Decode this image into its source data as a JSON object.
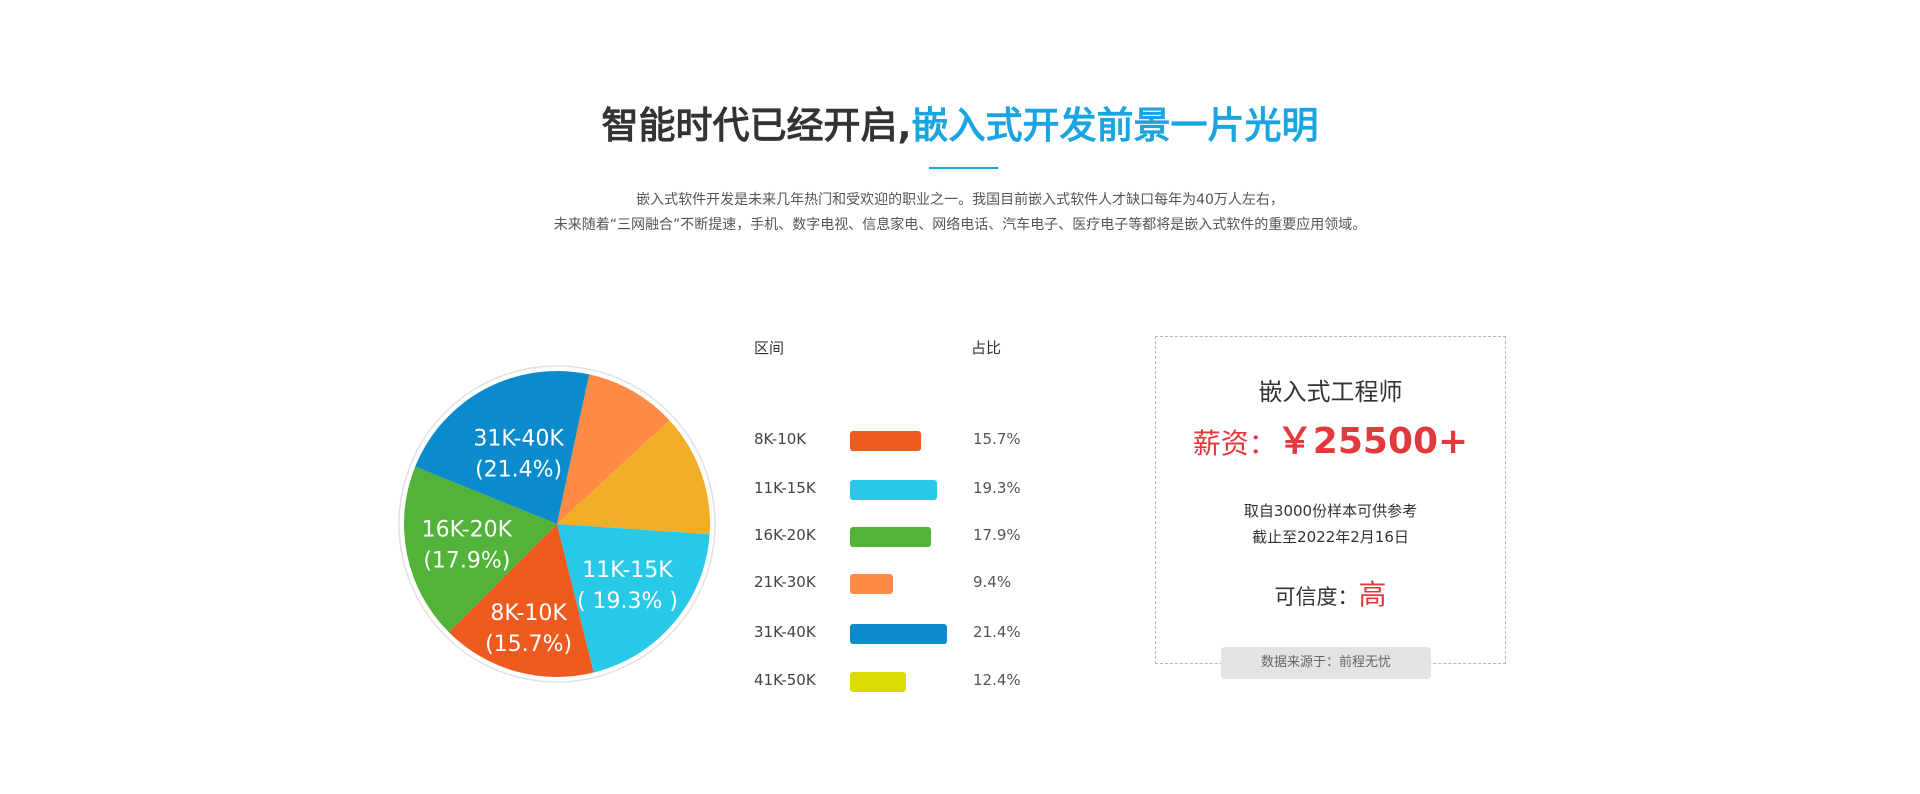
{
  "header": {
    "title_dark": "智能时代已经开启,",
    "title_blue": "嵌入式开发前景一片光明",
    "desc_line1": "嵌入式软件开发是未来几年热门和受欢迎的职业之一。我国目前嵌入式软件人才缺口每年为40万人左右，",
    "desc_line2": "未来随着“三网融合”不断提速，手机、数字电视、信息家电、网络电话、汽车电子、医疗电子等都将是嵌入式软件的重要应用领域。"
  },
  "colors": {
    "accent_blue": "#1aa5e0",
    "red": "#e4393c"
  },
  "chart_data": {
    "type": "pie",
    "column_headers": {
      "range": "区间",
      "ratio": "占比"
    },
    "slices": [
      {
        "range": "8K-10K",
        "value": 15.7,
        "pct_label": "15.7%",
        "color": "#ef5a1e",
        "pie_label_line1": "8K-10K",
        "pie_label_line2": "(15.7%)"
      },
      {
        "range": "11K-15K",
        "value": 19.3,
        "pct_label": "19.3%",
        "color": "#27c9e6",
        "pie_label_line1": "11K-15K",
        "pie_label_line2": "( 19.3% )"
      },
      {
        "range": "16K-20K",
        "value": 17.9,
        "pct_label": "17.9%",
        "color": "#52b23a",
        "pie_label_line1": "16K-20K",
        "pie_label_line2": "(17.9%)"
      },
      {
        "range": "21K-30K",
        "value": 9.4,
        "pct_label": "9.4%",
        "color": "#fd8a45",
        "pie_label_line1": "",
        "pie_label_line2": ""
      },
      {
        "range": "31K-40K",
        "value": 21.4,
        "pct_label": "21.4%",
        "color": "#0b8bcb",
        "pie_label_line1": "31K-40K",
        "pie_label_line2": "(21.4%)"
      },
      {
        "range": "41K-50K",
        "value": 12.4,
        "pct_label": "12.4%",
        "color": "#dcdc05",
        "pie_label_line1": "",
        "pie_label_line2": ""
      }
    ],
    "pie_segments_drawn": [
      {
        "key": "31K-40K",
        "color": "#0b8bcb",
        "value": 21.4
      },
      {
        "key": "21K-30K",
        "color": "#fd8a45",
        "value": 9.4
      },
      {
        "key": "41K-50K-visible",
        "color": "#f3ae28",
        "value": 12.4
      },
      {
        "key": "11K-15K",
        "color": "#27c9e6",
        "value": 19.3
      },
      {
        "key": "8K-10K",
        "color": "#ef5a1e",
        "value": 15.7
      },
      {
        "key": "16K-20K",
        "color": "#52b23a",
        "value": 17.9
      }
    ]
  },
  "card": {
    "title": "嵌入式工程师",
    "salary_label": "薪资：",
    "salary_value": "￥25500+",
    "note_line1": "取自3000份样本可供参考",
    "note_line2": "截止至2022年2月16日",
    "credibility_label": "可信度：",
    "credibility_value": "高",
    "source": "数据来源于：前程无忧"
  }
}
